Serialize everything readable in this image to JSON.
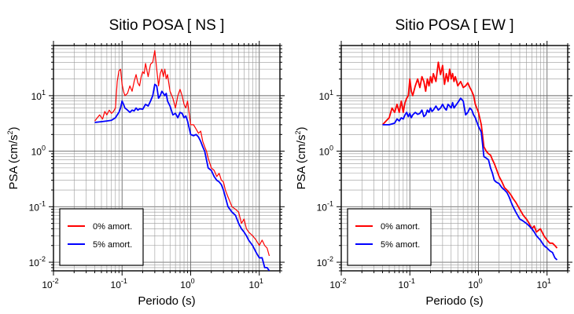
{
  "chart_data": [
    {
      "type": "line",
      "title": "Sitio POSA [ NS ]",
      "xlabel": "Periodo (s)",
      "ylabel_base": "PSA (cm/s",
      "ylabel_sup": "2",
      "ylabel_tail": ")",
      "x_scale": "log",
      "y_scale": "log",
      "xlim": [
        0.01,
        20
      ],
      "ylim": [
        0.007,
        80
      ],
      "grid": true,
      "legend_position": "bottom-left",
      "x_ticks": [
        {
          "base": "10",
          "exp": "-2"
        },
        {
          "base": "10",
          "exp": "-1"
        },
        {
          "base": "10",
          "exp": "0"
        },
        {
          "base": "10",
          "exp": "1"
        }
      ],
      "y_ticks": [
        {
          "base": "10",
          "exp": "-2"
        },
        {
          "base": "10",
          "exp": "-1"
        },
        {
          "base": "10",
          "exp": "0"
        },
        {
          "base": "10",
          "exp": "1"
        }
      ],
      "series": [
        {
          "name": "0% amort.",
          "color": "#ff0000",
          "x": [
            0.04,
            0.047,
            0.052,
            0.056,
            0.06,
            0.065,
            0.07,
            0.075,
            0.08,
            0.085,
            0.09,
            0.095,
            0.1,
            0.105,
            0.11,
            0.12,
            0.13,
            0.14,
            0.15,
            0.16,
            0.17,
            0.18,
            0.19,
            0.2,
            0.21,
            0.22,
            0.24,
            0.26,
            0.28,
            0.3,
            0.32,
            0.34,
            0.36,
            0.38,
            0.4,
            0.42,
            0.44,
            0.46,
            0.5,
            0.55,
            0.6,
            0.65,
            0.7,
            0.75,
            0.8,
            0.85,
            0.9,
            1.0,
            1.1,
            1.2,
            1.3,
            1.4,
            1.5,
            1.6,
            1.7,
            1.8,
            2.0,
            2.2,
            2.4,
            2.6,
            2.8,
            3.0,
            3.2,
            3.5,
            4.0,
            4.5,
            5.0,
            5.5,
            6.0,
            6.5,
            7.0,
            8.0,
            9.0,
            10.0,
            11.0,
            12.0,
            13.0,
            14.0
          ],
          "y": [
            3.5,
            4.5,
            3.8,
            5.2,
            4.5,
            5.5,
            4.8,
            5.2,
            6.0,
            18.0,
            28.0,
            30.0,
            16.0,
            12.0,
            10.0,
            11.0,
            15.0,
            12.0,
            18.0,
            24.0,
            17.0,
            15.0,
            22.0,
            27.0,
            25.0,
            38.0,
            22.0,
            37.0,
            40.0,
            65.0,
            30.0,
            15.0,
            25.0,
            30.0,
            22.0,
            30.0,
            20.0,
            24.0,
            12.0,
            9.0,
            6.0,
            10.0,
            13.0,
            10.0,
            7.0,
            6.0,
            8.0,
            3.0,
            3.0,
            2.5,
            2.1,
            2.3,
            1.5,
            1.2,
            1.0,
            0.75,
            0.5,
            0.45,
            0.35,
            0.4,
            0.3,
            0.28,
            0.2,
            0.15,
            0.1,
            0.09,
            0.08,
            0.05,
            0.06,
            0.04,
            0.035,
            0.03,
            0.025,
            0.02,
            0.025,
            0.02,
            0.018,
            0.013
          ]
        },
        {
          "name": "5% amort.",
          "color": "#0000ff",
          "x": [
            0.04,
            0.05,
            0.06,
            0.07,
            0.08,
            0.085,
            0.09,
            0.095,
            0.1,
            0.105,
            0.11,
            0.12,
            0.13,
            0.14,
            0.15,
            0.16,
            0.17,
            0.18,
            0.2,
            0.22,
            0.24,
            0.26,
            0.28,
            0.3,
            0.32,
            0.34,
            0.36,
            0.38,
            0.4,
            0.42,
            0.44,
            0.46,
            0.5,
            0.55,
            0.6,
            0.65,
            0.7,
            0.75,
            0.8,
            0.85,
            0.9,
            1.0,
            1.1,
            1.2,
            1.3,
            1.4,
            1.5,
            1.6,
            1.7,
            1.8,
            2.0,
            2.2,
            2.4,
            2.6,
            2.8,
            3.0,
            3.2,
            3.5,
            4.0,
            4.5,
            5.0,
            5.5,
            6.0,
            6.5,
            7.0,
            8.0,
            9.0,
            10.0,
            11.0,
            12.0,
            13.0,
            14.0
          ],
          "y": [
            3.3,
            3.4,
            3.5,
            3.6,
            4.0,
            4.5,
            5.0,
            6.0,
            8.0,
            7.0,
            6.0,
            5.5,
            5.0,
            5.5,
            5.3,
            6.0,
            5.5,
            5.8,
            5.7,
            7.0,
            6.5,
            8.0,
            10.0,
            16.0,
            15.0,
            9.0,
            10.0,
            12.0,
            11.0,
            10.0,
            11.0,
            8.0,
            6.5,
            4.5,
            4.8,
            4.0,
            5.0,
            4.8,
            4.0,
            4.3,
            3.5,
            2.0,
            1.9,
            2.0,
            1.8,
            1.5,
            1.2,
            1.0,
            0.7,
            0.5,
            0.45,
            0.35,
            0.3,
            0.28,
            0.25,
            0.2,
            0.15,
            0.1,
            0.08,
            0.07,
            0.05,
            0.04,
            0.035,
            0.03,
            0.025,
            0.02,
            0.015,
            0.012,
            0.012,
            0.008,
            0.008,
            0.007
          ]
        }
      ]
    },
    {
      "type": "line",
      "title": "Sitio POSA [ EW ]",
      "xlabel": "Periodo (s)",
      "ylabel_base": "PSA (cm/s",
      "ylabel_sup": "2",
      "ylabel_tail": ")",
      "x_scale": "log",
      "y_scale": "log",
      "xlim": [
        0.01,
        20
      ],
      "ylim": [
        0.007,
        80
      ],
      "grid": true,
      "legend_position": "bottom-left",
      "x_ticks": [
        {
          "base": "10",
          "exp": "-2"
        },
        {
          "base": "10",
          "exp": "-1"
        },
        {
          "base": "10",
          "exp": "0"
        },
        {
          "base": "10",
          "exp": "1"
        }
      ],
      "y_ticks": [
        {
          "base": "10",
          "exp": "-2"
        },
        {
          "base": "10",
          "exp": "-1"
        },
        {
          "base": "10",
          "exp": "0"
        },
        {
          "base": "10",
          "exp": "1"
        }
      ],
      "series": [
        {
          "name": "0% amort.",
          "color": "#ff0000",
          "x": [
            0.04,
            0.045,
            0.05,
            0.055,
            0.06,
            0.065,
            0.07,
            0.075,
            0.08,
            0.085,
            0.09,
            0.095,
            0.1,
            0.105,
            0.11,
            0.12,
            0.13,
            0.14,
            0.15,
            0.16,
            0.17,
            0.18,
            0.19,
            0.2,
            0.21,
            0.22,
            0.24,
            0.26,
            0.28,
            0.3,
            0.32,
            0.34,
            0.36,
            0.38,
            0.4,
            0.42,
            0.44,
            0.46,
            0.5,
            0.55,
            0.6,
            0.65,
            0.7,
            0.75,
            0.8,
            0.85,
            0.9,
            1.0,
            1.1,
            1.2,
            1.3,
            1.4,
            1.5,
            1.6,
            1.7,
            1.8,
            2.0,
            2.2,
            2.4,
            2.6,
            2.8,
            3.0,
            3.2,
            3.5,
            4.0,
            4.5,
            5.0,
            5.5,
            6.0,
            6.5,
            7.0,
            8.0,
            9.0,
            10.0,
            11.0,
            12.0,
            13.0,
            14.0
          ],
          "y": [
            3.0,
            3.5,
            4.0,
            6.0,
            5.0,
            7.0,
            5.0,
            8.0,
            5.0,
            7.5,
            9.0,
            10.0,
            20.0,
            12.0,
            10.0,
            15.0,
            20.0,
            14.0,
            22.0,
            18.0,
            12.0,
            20.0,
            15.0,
            22.0,
            17.0,
            25.0,
            18.0,
            40.0,
            24.0,
            35.0,
            16.0,
            25.0,
            18.0,
            30.0,
            20.0,
            25.0,
            18.0,
            22.0,
            15.0,
            18.0,
            14.0,
            15.0,
            17.0,
            14.0,
            12.0,
            10.0,
            7.0,
            5.0,
            3.0,
            1.2,
            1.0,
            0.9,
            0.85,
            0.7,
            0.6,
            0.5,
            0.35,
            0.28,
            0.22,
            0.2,
            0.18,
            0.16,
            0.14,
            0.12,
            0.09,
            0.07,
            0.06,
            0.05,
            0.04,
            0.045,
            0.035,
            0.04,
            0.03,
            0.025,
            0.022,
            0.022,
            0.02,
            0.018
          ]
        },
        {
          "name": "5% amort.",
          "color": "#0000ff",
          "x": [
            0.04,
            0.05,
            0.06,
            0.065,
            0.07,
            0.075,
            0.08,
            0.085,
            0.09,
            0.095,
            0.1,
            0.105,
            0.11,
            0.12,
            0.13,
            0.14,
            0.15,
            0.16,
            0.17,
            0.18,
            0.19,
            0.2,
            0.21,
            0.22,
            0.24,
            0.26,
            0.28,
            0.3,
            0.32,
            0.34,
            0.36,
            0.38,
            0.4,
            0.42,
            0.44,
            0.46,
            0.5,
            0.55,
            0.6,
            0.65,
            0.7,
            0.75,
            0.8,
            0.85,
            0.9,
            1.0,
            1.1,
            1.2,
            1.3,
            1.4,
            1.5,
            1.6,
            1.7,
            1.8,
            2.0,
            2.2,
            2.4,
            2.6,
            2.8,
            3.0,
            3.2,
            3.5,
            4.0,
            4.5,
            5.0,
            5.5,
            6.0,
            6.5,
            7.0,
            8.0,
            9.0,
            10.0,
            11.0,
            12.0,
            13.0,
            14.0
          ],
          "y": [
            3.0,
            3.0,
            3.2,
            3.8,
            3.5,
            4.0,
            3.8,
            4.5,
            5.0,
            4.2,
            4.8,
            4.0,
            4.5,
            5.0,
            4.6,
            4.8,
            5.5,
            4.2,
            4.5,
            5.5,
            5.0,
            6.0,
            5.2,
            5.5,
            6.5,
            5.5,
            6.0,
            7.0,
            6.0,
            5.5,
            7.0,
            6.5,
            6.0,
            7.5,
            6.0,
            6.5,
            7.5,
            9.0,
            8.0,
            4.5,
            5.0,
            6.0,
            5.5,
            4.5,
            4.0,
            2.8,
            2.2,
            0.8,
            0.75,
            0.7,
            0.5,
            0.4,
            0.3,
            0.28,
            0.26,
            0.22,
            0.2,
            0.18,
            0.15,
            0.12,
            0.1,
            0.08,
            0.06,
            0.055,
            0.05,
            0.045,
            0.04,
            0.035,
            0.03,
            0.025,
            0.02,
            0.018,
            0.016,
            0.015,
            0.012,
            0.011
          ]
        }
      ]
    }
  ]
}
